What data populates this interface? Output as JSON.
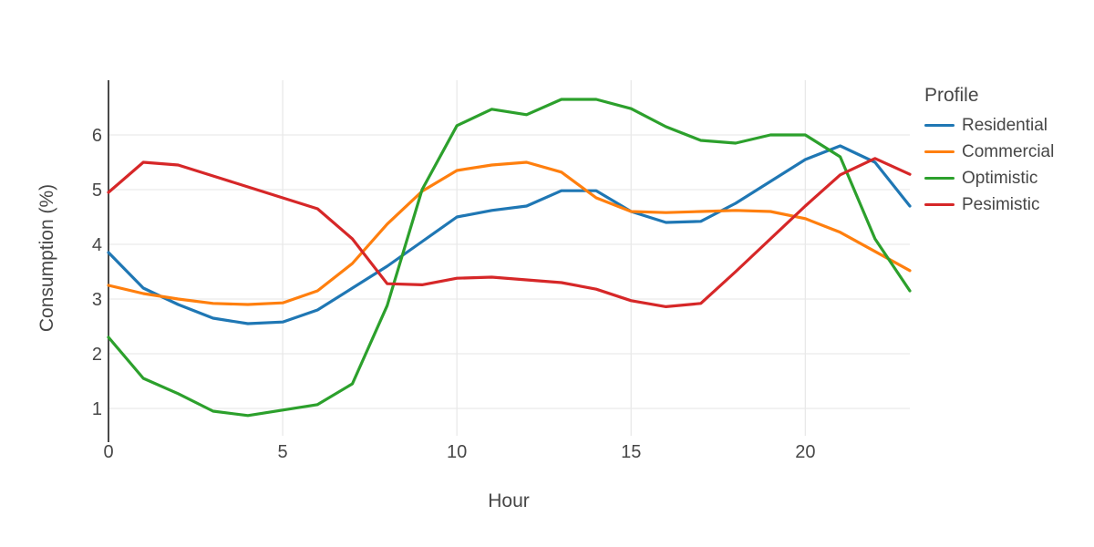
{
  "figure": {
    "background": "#ffffff",
    "text_color": "#474747",
    "grid_color": "#e9e9e9",
    "axis_line_color": "#4a4a4a"
  },
  "chart_data": {
    "type": "line",
    "title": "",
    "xlabel": "Hour",
    "ylabel": "Consumption (%)",
    "legend_title": "Profile",
    "legend_position": "right",
    "grid": true,
    "xlim": [
      0,
      23
    ],
    "ylim": [
      0.5,
      7.0
    ],
    "xticks": [
      0,
      5,
      10,
      15,
      20
    ],
    "yticks": [
      1,
      2,
      3,
      4,
      5,
      6
    ],
    "x": [
      0,
      1,
      2,
      3,
      4,
      5,
      6,
      7,
      8,
      9,
      10,
      11,
      12,
      13,
      14,
      15,
      16,
      17,
      18,
      19,
      20,
      21,
      22,
      23
    ],
    "series": [
      {
        "name": "Residential",
        "color": "#1f77b4",
        "values": [
          3.85,
          3.2,
          2.9,
          2.65,
          2.55,
          2.58,
          2.8,
          3.2,
          3.6,
          4.05,
          4.5,
          4.62,
          4.7,
          4.98,
          4.98,
          4.6,
          4.4,
          4.42,
          4.75,
          5.15,
          5.55,
          5.8,
          5.5,
          4.7
        ]
      },
      {
        "name": "Commercial",
        "color": "#ff7f0e",
        "values": [
          3.25,
          3.1,
          3.0,
          2.92,
          2.9,
          2.93,
          3.15,
          3.65,
          4.37,
          4.97,
          5.35,
          5.45,
          5.5,
          5.32,
          4.85,
          4.6,
          4.58,
          4.6,
          4.62,
          4.6,
          4.47,
          4.22,
          3.87,
          3.52
        ]
      },
      {
        "name": "Optimistic",
        "color": "#2ca02c",
        "values": [
          2.3,
          1.55,
          1.27,
          0.95,
          0.87,
          0.97,
          1.07,
          1.45,
          2.88,
          5.0,
          6.17,
          6.47,
          6.37,
          6.65,
          6.65,
          6.48,
          6.15,
          5.9,
          5.85,
          6.0,
          6.0,
          5.6,
          4.1,
          3.15
        ]
      },
      {
        "name": "Pesimistic",
        "color": "#d62728",
        "values": [
          4.95,
          5.5,
          5.45,
          5.25,
          5.05,
          4.85,
          4.65,
          4.1,
          3.28,
          3.26,
          3.38,
          3.4,
          3.35,
          3.3,
          3.18,
          2.97,
          2.86,
          2.92,
          3.5,
          4.1,
          4.7,
          5.27,
          5.57,
          5.28
        ]
      }
    ]
  }
}
